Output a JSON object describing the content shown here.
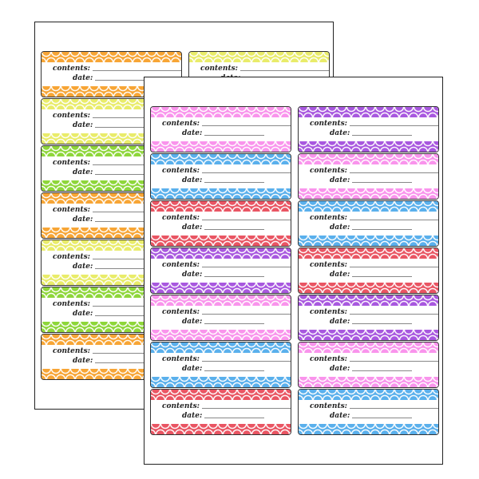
{
  "label_text": {
    "contents": "contents:",
    "date": "date:"
  },
  "colors": {
    "orange": "#f7a535",
    "yellow": "#e9ec6a",
    "green": "#8ed63a",
    "pink": "#f994ec",
    "blue": "#5ab0ec",
    "red": "#e95563",
    "purple": "#a858df"
  },
  "sheets": [
    {
      "id": "back",
      "columns": [
        [
          "orange",
          "yellow",
          "green",
          "orange",
          "yellow",
          "green",
          "orange"
        ],
        [
          "yellow"
        ]
      ]
    },
    {
      "id": "front",
      "columns": [
        [
          "pink",
          "blue",
          "red",
          "purple",
          "pink",
          "blue",
          "red"
        ],
        [
          "purple",
          "pink",
          "blue",
          "red",
          "purple",
          "pink",
          "blue"
        ]
      ]
    }
  ]
}
